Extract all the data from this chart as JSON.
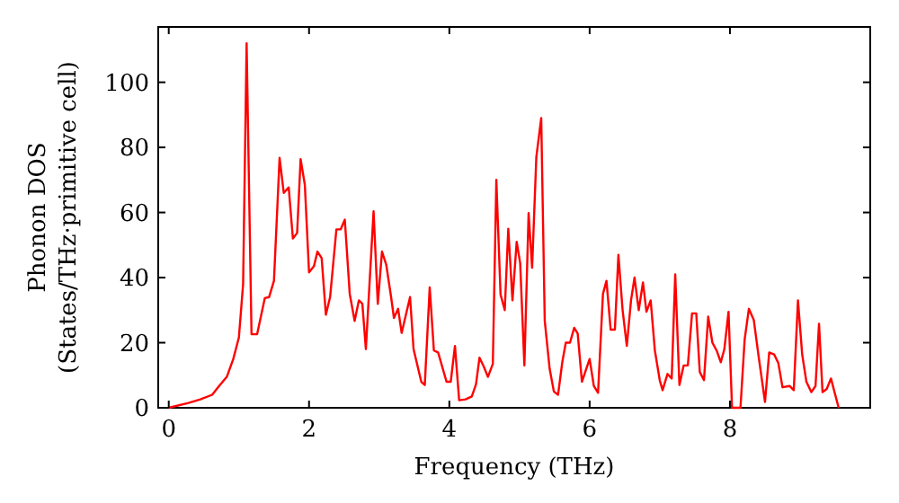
{
  "chart_data": {
    "type": "line",
    "xlabel": "Frequency (THz)",
    "ylabel": "Phonon DOS\n(States/THz·primitive cell)",
    "xlim": [
      -0.15,
      10
    ],
    "ylim": [
      0,
      117
    ],
    "xticks": [
      0,
      2,
      4,
      6,
      8
    ],
    "yticks": [
      0,
      20,
      40,
      60,
      80,
      100
    ],
    "grid": false,
    "marker": "none",
    "line_style": "solid",
    "series": [
      {
        "color": "#ff0000",
        "x": [
          0,
          0.28,
          0.45,
          0.62,
          0.71,
          0.83,
          0.92,
          1.0,
          1.06,
          1.11,
          1.18,
          1.26,
          1.37,
          1.43,
          1.5,
          1.58,
          1.64,
          1.71,
          1.77,
          1.83,
          1.88,
          1.94,
          2.0,
          2.07,
          2.12,
          2.18,
          2.24,
          2.3,
          2.39,
          2.45,
          2.51,
          2.58,
          2.65,
          2.71,
          2.76,
          2.81,
          2.92,
          2.98,
          3.04,
          3.1,
          3.17,
          3.21,
          3.27,
          3.32,
          3.44,
          3.49,
          3.6,
          3.65,
          3.72,
          3.78,
          3.84,
          3.96,
          4.02,
          4.08,
          4.14,
          4.23,
          4.32,
          4.38,
          4.43,
          4.49,
          4.55,
          4.62,
          4.67,
          4.73,
          4.79,
          4.84,
          4.9,
          4.96,
          5.01,
          5.07,
          5.13,
          5.18,
          5.24,
          5.31,
          5.36,
          5.43,
          5.49,
          5.55,
          5.61,
          5.66,
          5.72,
          5.78,
          5.83,
          5.89,
          6.0,
          6.06,
          6.12,
          6.19,
          6.24,
          6.3,
          6.36,
          6.41,
          6.47,
          6.53,
          6.59,
          6.64,
          6.7,
          6.76,
          6.81,
          6.87,
          6.93,
          7.0,
          7.04,
          7.11,
          7.17,
          7.22,
          7.28,
          7.34,
          7.4,
          7.46,
          7.52,
          7.57,
          7.63,
          7.69,
          7.75,
          7.81,
          7.87,
          7.92,
          7.98,
          8.03,
          8.15,
          8.21,
          8.27,
          8.34,
          8.41,
          8.5,
          8.56,
          8.63,
          8.69,
          8.75,
          8.85,
          8.91,
          8.97,
          9.03,
          9.09,
          9.16,
          9.22,
          9.27,
          9.32,
          9.38,
          9.44,
          9.55
        ],
        "values": [
          0,
          1.5,
          2.6,
          4,
          6.5,
          9.6,
          15,
          21.6,
          38,
          112,
          22.6,
          22.6,
          33.7,
          34,
          39,
          76.8,
          66,
          67.7,
          52,
          53.7,
          76.4,
          68.5,
          41.6,
          43.5,
          48,
          46,
          28.6,
          34,
          54.8,
          54.8,
          57.8,
          35,
          26.7,
          33,
          32,
          18,
          60.4,
          31.9,
          48,
          44,
          34,
          27.6,
          30.4,
          23,
          34,
          18,
          8,
          7,
          37,
          17.6,
          17,
          8,
          8,
          19,
          2.3,
          2.6,
          3.5,
          7.2,
          15.4,
          12.7,
          9.5,
          13.5,
          70,
          34.8,
          30,
          55,
          33,
          51,
          44.4,
          13,
          59.8,
          43,
          77,
          89,
          26.7,
          12,
          5,
          4,
          14,
          20,
          20,
          24.6,
          22.8,
          8,
          15,
          6.7,
          4.6,
          35,
          39,
          24,
          24,
          47,
          30,
          19,
          33,
          40,
          30,
          38.5,
          29.5,
          33,
          17.6,
          8.4,
          5.4,
          10.4,
          9,
          41,
          7,
          13,
          13,
          29,
          29,
          11,
          8.5,
          28,
          20,
          17.6,
          14,
          18,
          29.5,
          0,
          0,
          21,
          30.4,
          27,
          15.6,
          1.8,
          17,
          16.4,
          13.7,
          6.3,
          6.7,
          5.4,
          33,
          16.4,
          8,
          4.8,
          6.7,
          25.8,
          4.8,
          5.8,
          9,
          0
        ]
      }
    ]
  }
}
